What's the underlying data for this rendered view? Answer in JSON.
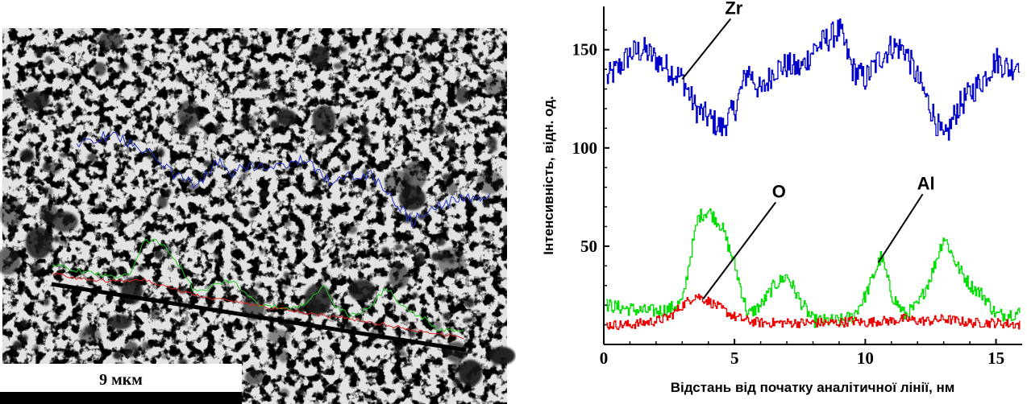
{
  "micrograph": {
    "scale_bar_label": "9 мкм",
    "overlay_colors": {
      "Zr": "#2233cc",
      "Al": "#22cc22",
      "O": "#dd2222",
      "scan_line": "#000000"
    }
  },
  "chart_data": {
    "type": "line",
    "xlabel": "Відстань від початку аналітичної лінії, нм",
    "ylabel": "Інтенсивність, відн. од.",
    "xlim": [
      0,
      16
    ],
    "ylim": [
      0,
      172
    ],
    "xticks": [
      "0",
      "5",
      "10",
      "15"
    ],
    "yticks": [
      "50",
      "100",
      "150"
    ],
    "series": [
      {
        "name": "Zr",
        "color": "#0000cc",
        "x": [
          0.1,
          0.5,
          1.0,
          1.5,
          2.0,
          2.5,
          3.0,
          3.5,
          4.0,
          4.5,
          5.0,
          5.5,
          6.0,
          6.5,
          7.0,
          7.5,
          8.0,
          8.5,
          9.0,
          9.5,
          10.0,
          10.5,
          11.0,
          11.5,
          12.0,
          12.5,
          13.0,
          13.5,
          14.0,
          14.5,
          15.0,
          15.5,
          15.9
        ],
        "values": [
          135,
          140,
          148,
          150,
          145,
          140,
          135,
          120,
          115,
          110,
          120,
          140,
          128,
          140,
          142,
          140,
          150,
          155,
          160,
          140,
          135,
          145,
          152,
          150,
          135,
          120,
          103,
          120,
          128,
          135,
          145,
          140,
          145
        ]
      },
      {
        "name": "Al",
        "color": "#00dd00",
        "x": [
          0.1,
          0.5,
          1.0,
          1.5,
          2.0,
          2.5,
          3.0,
          3.3,
          3.6,
          4.0,
          4.5,
          5.0,
          5.5,
          6.0,
          6.5,
          7.0,
          7.5,
          8.0,
          8.5,
          9.0,
          9.5,
          10.0,
          10.3,
          10.6,
          11.0,
          11.5,
          12.0,
          12.5,
          13.0,
          13.5,
          14.0,
          14.5,
          15.0,
          15.9
        ],
        "values": [
          20,
          19,
          18,
          17,
          17,
          18,
          22,
          45,
          65,
          68,
          60,
          40,
          15,
          20,
          30,
          35,
          22,
          12,
          12,
          12,
          14,
          25,
          35,
          45,
          25,
          15,
          20,
          35,
          55,
          40,
          30,
          25,
          15,
          16
        ]
      },
      {
        "name": "O",
        "color": "#ee0000",
        "x": [
          0.1,
          0.5,
          1.0,
          1.5,
          2.0,
          2.5,
          3.0,
          3.5,
          4.0,
          4.5,
          5.0,
          5.5,
          6.0,
          6.5,
          7.0,
          7.5,
          8.0,
          8.5,
          9.0,
          9.5,
          10.0,
          10.5,
          11.0,
          11.5,
          12.0,
          12.5,
          13.0,
          13.5,
          14.0,
          14.5,
          15.0,
          15.9
        ],
        "values": [
          10,
          10,
          10,
          11,
          12,
          14,
          20,
          25,
          22,
          18,
          14,
          12,
          11,
          11,
          11,
          11,
          11,
          11,
          11,
          12,
          11,
          12,
          12,
          13,
          12,
          12,
          13,
          12,
          11,
          11,
          11,
          10
        ]
      }
    ],
    "annotations": [
      {
        "text": "Zr",
        "series": "Zr",
        "x": 3.0
      },
      {
        "text": "O",
        "series": "O",
        "x": 3.8
      },
      {
        "text": "Al",
        "series": "Al",
        "x": 10.5
      }
    ]
  }
}
